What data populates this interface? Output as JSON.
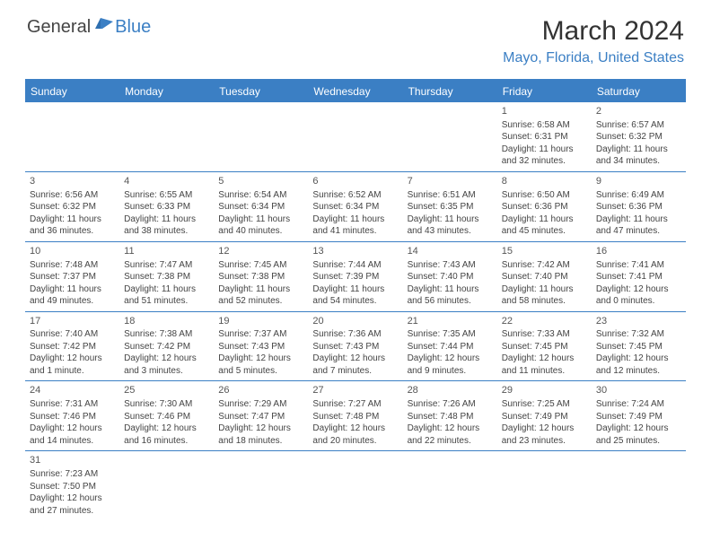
{
  "logo": {
    "general": "General",
    "blue": "Blue"
  },
  "title": "March 2024",
  "location": "Mayo, Florida, United States",
  "weekdays": [
    "Sunday",
    "Monday",
    "Tuesday",
    "Wednesday",
    "Thursday",
    "Friday",
    "Saturday"
  ],
  "colors": {
    "accent": "#3b7fc4",
    "text": "#444",
    "bg": "#ffffff"
  },
  "weeks": [
    [
      null,
      null,
      null,
      null,
      null,
      {
        "n": "1",
        "sr": "Sunrise: 6:58 AM",
        "ss": "Sunset: 6:31 PM",
        "d1": "Daylight: 11 hours",
        "d2": "and 32 minutes."
      },
      {
        "n": "2",
        "sr": "Sunrise: 6:57 AM",
        "ss": "Sunset: 6:32 PM",
        "d1": "Daylight: 11 hours",
        "d2": "and 34 minutes."
      }
    ],
    [
      {
        "n": "3",
        "sr": "Sunrise: 6:56 AM",
        "ss": "Sunset: 6:32 PM",
        "d1": "Daylight: 11 hours",
        "d2": "and 36 minutes."
      },
      {
        "n": "4",
        "sr": "Sunrise: 6:55 AM",
        "ss": "Sunset: 6:33 PM",
        "d1": "Daylight: 11 hours",
        "d2": "and 38 minutes."
      },
      {
        "n": "5",
        "sr": "Sunrise: 6:54 AM",
        "ss": "Sunset: 6:34 PM",
        "d1": "Daylight: 11 hours",
        "d2": "and 40 minutes."
      },
      {
        "n": "6",
        "sr": "Sunrise: 6:52 AM",
        "ss": "Sunset: 6:34 PM",
        "d1": "Daylight: 11 hours",
        "d2": "and 41 minutes."
      },
      {
        "n": "7",
        "sr": "Sunrise: 6:51 AM",
        "ss": "Sunset: 6:35 PM",
        "d1": "Daylight: 11 hours",
        "d2": "and 43 minutes."
      },
      {
        "n": "8",
        "sr": "Sunrise: 6:50 AM",
        "ss": "Sunset: 6:36 PM",
        "d1": "Daylight: 11 hours",
        "d2": "and 45 minutes."
      },
      {
        "n": "9",
        "sr": "Sunrise: 6:49 AM",
        "ss": "Sunset: 6:36 PM",
        "d1": "Daylight: 11 hours",
        "d2": "and 47 minutes."
      }
    ],
    [
      {
        "n": "10",
        "sr": "Sunrise: 7:48 AM",
        "ss": "Sunset: 7:37 PM",
        "d1": "Daylight: 11 hours",
        "d2": "and 49 minutes."
      },
      {
        "n": "11",
        "sr": "Sunrise: 7:47 AM",
        "ss": "Sunset: 7:38 PM",
        "d1": "Daylight: 11 hours",
        "d2": "and 51 minutes."
      },
      {
        "n": "12",
        "sr": "Sunrise: 7:45 AM",
        "ss": "Sunset: 7:38 PM",
        "d1": "Daylight: 11 hours",
        "d2": "and 52 minutes."
      },
      {
        "n": "13",
        "sr": "Sunrise: 7:44 AM",
        "ss": "Sunset: 7:39 PM",
        "d1": "Daylight: 11 hours",
        "d2": "and 54 minutes."
      },
      {
        "n": "14",
        "sr": "Sunrise: 7:43 AM",
        "ss": "Sunset: 7:40 PM",
        "d1": "Daylight: 11 hours",
        "d2": "and 56 minutes."
      },
      {
        "n": "15",
        "sr": "Sunrise: 7:42 AM",
        "ss": "Sunset: 7:40 PM",
        "d1": "Daylight: 11 hours",
        "d2": "and 58 minutes."
      },
      {
        "n": "16",
        "sr": "Sunrise: 7:41 AM",
        "ss": "Sunset: 7:41 PM",
        "d1": "Daylight: 12 hours",
        "d2": "and 0 minutes."
      }
    ],
    [
      {
        "n": "17",
        "sr": "Sunrise: 7:40 AM",
        "ss": "Sunset: 7:42 PM",
        "d1": "Daylight: 12 hours",
        "d2": "and 1 minute."
      },
      {
        "n": "18",
        "sr": "Sunrise: 7:38 AM",
        "ss": "Sunset: 7:42 PM",
        "d1": "Daylight: 12 hours",
        "d2": "and 3 minutes."
      },
      {
        "n": "19",
        "sr": "Sunrise: 7:37 AM",
        "ss": "Sunset: 7:43 PM",
        "d1": "Daylight: 12 hours",
        "d2": "and 5 minutes."
      },
      {
        "n": "20",
        "sr": "Sunrise: 7:36 AM",
        "ss": "Sunset: 7:43 PM",
        "d1": "Daylight: 12 hours",
        "d2": "and 7 minutes."
      },
      {
        "n": "21",
        "sr": "Sunrise: 7:35 AM",
        "ss": "Sunset: 7:44 PM",
        "d1": "Daylight: 12 hours",
        "d2": "and 9 minutes."
      },
      {
        "n": "22",
        "sr": "Sunrise: 7:33 AM",
        "ss": "Sunset: 7:45 PM",
        "d1": "Daylight: 12 hours",
        "d2": "and 11 minutes."
      },
      {
        "n": "23",
        "sr": "Sunrise: 7:32 AM",
        "ss": "Sunset: 7:45 PM",
        "d1": "Daylight: 12 hours",
        "d2": "and 12 minutes."
      }
    ],
    [
      {
        "n": "24",
        "sr": "Sunrise: 7:31 AM",
        "ss": "Sunset: 7:46 PM",
        "d1": "Daylight: 12 hours",
        "d2": "and 14 minutes."
      },
      {
        "n": "25",
        "sr": "Sunrise: 7:30 AM",
        "ss": "Sunset: 7:46 PM",
        "d1": "Daylight: 12 hours",
        "d2": "and 16 minutes."
      },
      {
        "n": "26",
        "sr": "Sunrise: 7:29 AM",
        "ss": "Sunset: 7:47 PM",
        "d1": "Daylight: 12 hours",
        "d2": "and 18 minutes."
      },
      {
        "n": "27",
        "sr": "Sunrise: 7:27 AM",
        "ss": "Sunset: 7:48 PM",
        "d1": "Daylight: 12 hours",
        "d2": "and 20 minutes."
      },
      {
        "n": "28",
        "sr": "Sunrise: 7:26 AM",
        "ss": "Sunset: 7:48 PM",
        "d1": "Daylight: 12 hours",
        "d2": "and 22 minutes."
      },
      {
        "n": "29",
        "sr": "Sunrise: 7:25 AM",
        "ss": "Sunset: 7:49 PM",
        "d1": "Daylight: 12 hours",
        "d2": "and 23 minutes."
      },
      {
        "n": "30",
        "sr": "Sunrise: 7:24 AM",
        "ss": "Sunset: 7:49 PM",
        "d1": "Daylight: 12 hours",
        "d2": "and 25 minutes."
      }
    ],
    [
      {
        "n": "31",
        "sr": "Sunrise: 7:23 AM",
        "ss": "Sunset: 7:50 PM",
        "d1": "Daylight: 12 hours",
        "d2": "and 27 minutes."
      },
      null,
      null,
      null,
      null,
      null,
      null
    ]
  ]
}
